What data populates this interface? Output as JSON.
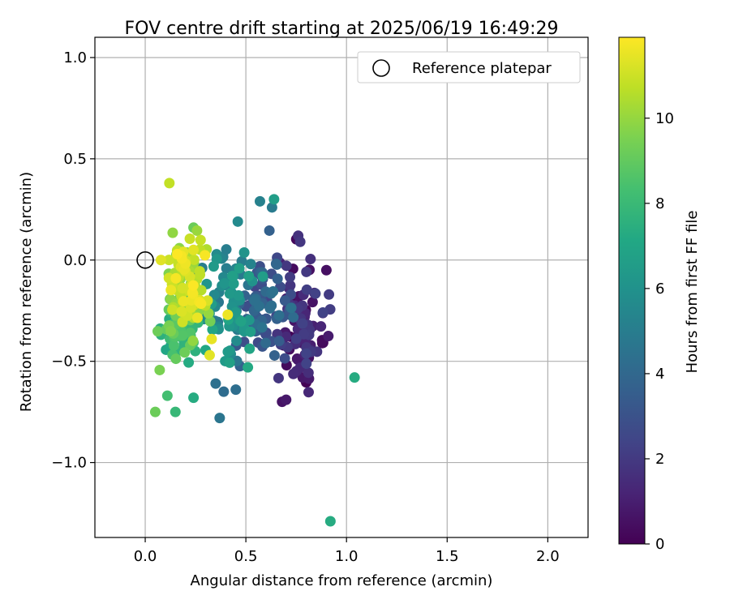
{
  "chart_data": {
    "type": "scatter",
    "title": "FOV centre drift starting at 2025/06/19 16:49:29",
    "xlabel": "Angular distance from reference (arcmin)",
    "ylabel": "Rotation from reference (arcmin)",
    "xlim": [
      -0.25,
      2.2
    ],
    "ylim": [
      -1.37,
      1.1
    ],
    "xticks": [
      0.0,
      0.5,
      1.0,
      1.5,
      2.0
    ],
    "xtick_labels": [
      "0.0",
      "0.5",
      "1.0",
      "1.5",
      "2.0"
    ],
    "yticks": [
      1.0,
      0.5,
      0.0,
      -0.5,
      -1.0
    ],
    "ytick_labels": [
      "1.0",
      "0.5",
      "0.0",
      "−0.5",
      "−1.0"
    ],
    "grid": true,
    "legend": {
      "position": "top-right",
      "entries": [
        "Reference platepar"
      ]
    },
    "reference_point": {
      "x": 0.0,
      "y": 0.0,
      "marker": "open-circle"
    },
    "colorbar": {
      "label": "Hours from first FF file",
      "range": [
        0,
        11.9
      ],
      "ticks": [
        0,
        2,
        4,
        6,
        8,
        10
      ],
      "tick_labels": [
        "0",
        "2",
        "4",
        "6",
        "8",
        "10"
      ],
      "colormap": "viridis"
    },
    "highlighted_points": [
      {
        "x": 0.12,
        "y": 0.38,
        "hours": 10.8
      },
      {
        "x": 0.64,
        "y": 0.3,
        "hours": 6.6
      },
      {
        "x": 0.57,
        "y": 0.29,
        "hours": 5.2
      },
      {
        "x": 0.63,
        "y": 0.26,
        "hours": 4.9
      },
      {
        "x": 0.46,
        "y": 0.19,
        "hours": 5.6
      },
      {
        "x": 1.04,
        "y": -0.58,
        "hours": 7.3
      },
      {
        "x": 0.92,
        "y": -1.29,
        "hours": 7.3
      },
      {
        "x": 0.24,
        "y": 0.16,
        "hours": 9.2
      },
      {
        "x": 0.05,
        "y": -0.75,
        "hours": 9.2
      },
      {
        "x": 0.15,
        "y": -0.75,
        "hours": 7.9
      },
      {
        "x": 0.11,
        "y": -0.67,
        "hours": 8.3
      },
      {
        "x": 0.24,
        "y": -0.68,
        "hours": 7.3
      },
      {
        "x": 0.37,
        "y": -0.78,
        "hours": 4.6
      },
      {
        "x": 0.35,
        "y": -0.61,
        "hours": 4.4
      },
      {
        "x": 0.39,
        "y": -0.65,
        "hours": 4.2
      },
      {
        "x": 0.45,
        "y": -0.64,
        "hours": 4.3
      },
      {
        "x": 0.51,
        "y": -0.53,
        "hours": 7.2
      },
      {
        "x": 0.68,
        "y": -0.7,
        "hours": 0.6
      },
      {
        "x": 0.7,
        "y": -0.69,
        "hours": 0.8
      },
      {
        "x": 0.88,
        "y": -0.41,
        "hours": 0.2
      },
      {
        "x": 0.9,
        "y": -0.05,
        "hours": 0.5
      },
      {
        "x": 0.76,
        "y": 0.12,
        "hours": 1.7
      },
      {
        "x": 0.77,
        "y": 0.09,
        "hours": 1.9
      },
      {
        "x": 0.41,
        "y": -0.27,
        "hours": 11.6
      },
      {
        "x": 0.32,
        "y": -0.47,
        "hours": 11.4
      },
      {
        "x": 0.31,
        "y": -0.2,
        "hours": 11.2
      },
      {
        "x": 0.33,
        "y": -0.39,
        "hours": 11.5
      }
    ],
    "clusters": [
      {
        "hours_range": [
          0.0,
          2.4
        ],
        "x_center": 0.77,
        "y_center": -0.33,
        "x_spread": 0.09,
        "y_spread": 0.21,
        "count": 95
      },
      {
        "hours_range": [
          2.4,
          4.6
        ],
        "x_center": 0.6,
        "y_center": -0.25,
        "x_spread": 0.09,
        "y_spread": 0.19,
        "count": 75
      },
      {
        "hours_range": [
          4.6,
          7.0
        ],
        "x_center": 0.43,
        "y_center": -0.2,
        "x_spread": 0.09,
        "y_spread": 0.17,
        "count": 75
      },
      {
        "hours_range": [
          7.0,
          9.5
        ],
        "x_center": 0.17,
        "y_center": -0.33,
        "x_spread": 0.07,
        "y_spread": 0.13,
        "count": 75
      },
      {
        "hours_range": [
          9.5,
          11.9
        ],
        "x_center": 0.2,
        "y_center": -0.1,
        "x_spread": 0.07,
        "y_spread": 0.17,
        "count": 100
      }
    ]
  }
}
